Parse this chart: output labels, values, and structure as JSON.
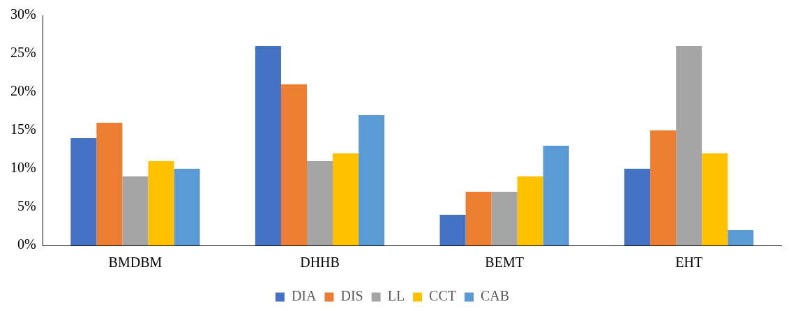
{
  "chart_data": {
    "type": "bar",
    "categories": [
      "BMDBM",
      "DHHB",
      "BEMT",
      "EHT"
    ],
    "series": [
      {
        "name": "DIA",
        "color": "#4472c4",
        "values": [
          14,
          26,
          4,
          10
        ]
      },
      {
        "name": "DIS",
        "color": "#ed7d31",
        "values": [
          16,
          21,
          7,
          15
        ]
      },
      {
        "name": "LL",
        "color": "#a5a5a5",
        "values": [
          9,
          11,
          7,
          26
        ]
      },
      {
        "name": "CCT",
        "color": "#ffc000",
        "values": [
          11,
          12,
          9,
          12
        ]
      },
      {
        "name": "CAB",
        "color": "#5b9bd5",
        "values": [
          10,
          17,
          13,
          2
        ]
      }
    ],
    "ylim": [
      0,
      30
    ],
    "yticks": [
      {
        "value": 0,
        "label": "0%"
      },
      {
        "value": 5,
        "label": "5%"
      },
      {
        "value": 10,
        "label": "10%"
      },
      {
        "value": 15,
        "label": "15%"
      },
      {
        "value": 20,
        "label": "20%"
      },
      {
        "value": 25,
        "label": "25%"
      },
      {
        "value": 30,
        "label": "30%"
      }
    ],
    "grid": false,
    "legend": "bottom"
  }
}
